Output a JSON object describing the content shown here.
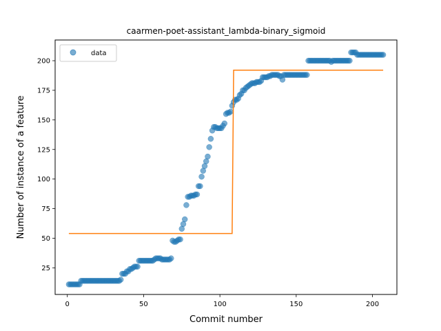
{
  "colors": {
    "data": "#1f77b4",
    "fit": "#ff7f0e"
  },
  "chart_data": {
    "type": "scatter",
    "title": "caarmen-poet-assistant_lambda-binary_sigmoid",
    "xlabel": "Commit number",
    "ylabel": "Number of instance of a feature",
    "xlim": [
      -8,
      216
    ],
    "ylim": [
      2.5,
      217.5
    ],
    "xticks": [
      0,
      50,
      100,
      150,
      200
    ],
    "yticks": [
      25,
      50,
      75,
      100,
      125,
      150,
      175,
      200
    ],
    "legend": {
      "placement": "top-left",
      "entries": [
        {
          "label": "data",
          "marker": "circle"
        }
      ]
    },
    "grid": false,
    "series": [
      {
        "name": "data",
        "kind": "scatter",
        "points": [
          [
            1,
            11
          ],
          [
            2,
            11
          ],
          [
            3,
            11
          ],
          [
            4,
            11
          ],
          [
            5,
            11
          ],
          [
            6,
            11
          ],
          [
            7,
            11
          ],
          [
            8,
            11
          ],
          [
            9,
            14
          ],
          [
            10,
            14
          ],
          [
            11,
            14
          ],
          [
            12,
            14
          ],
          [
            13,
            14
          ],
          [
            14,
            14
          ],
          [
            15,
            14
          ],
          [
            16,
            14
          ],
          [
            17,
            14
          ],
          [
            18,
            14
          ],
          [
            19,
            14
          ],
          [
            20,
            14
          ],
          [
            21,
            14
          ],
          [
            22,
            14
          ],
          [
            23,
            14
          ],
          [
            24,
            14
          ],
          [
            25,
            14
          ],
          [
            26,
            14
          ],
          [
            27,
            14
          ],
          [
            28,
            14
          ],
          [
            29,
            14
          ],
          [
            30,
            14
          ],
          [
            31,
            14
          ],
          [
            32,
            14
          ],
          [
            33,
            14
          ],
          [
            34,
            14
          ],
          [
            35,
            15
          ],
          [
            36,
            20
          ],
          [
            37,
            20
          ],
          [
            38,
            20
          ],
          [
            39,
            22
          ],
          [
            40,
            22
          ],
          [
            41,
            24
          ],
          [
            42,
            24
          ],
          [
            43,
            25
          ],
          [
            44,
            26
          ],
          [
            45,
            26
          ],
          [
            46,
            26
          ],
          [
            47,
            31
          ],
          [
            48,
            31
          ],
          [
            49,
            31
          ],
          [
            50,
            31
          ],
          [
            51,
            31
          ],
          [
            52,
            31
          ],
          [
            53,
            31
          ],
          [
            54,
            31
          ],
          [
            55,
            31
          ],
          [
            56,
            31
          ],
          [
            57,
            32
          ],
          [
            58,
            33
          ],
          [
            59,
            33
          ],
          [
            60,
            33
          ],
          [
            61,
            33
          ],
          [
            62,
            32
          ],
          [
            63,
            32
          ],
          [
            64,
            32
          ],
          [
            65,
            32
          ],
          [
            66,
            32
          ],
          [
            67,
            32
          ],
          [
            68,
            33
          ],
          [
            69,
            48
          ],
          [
            70,
            47
          ],
          [
            71,
            47
          ],
          [
            72,
            48
          ],
          [
            73,
            49
          ],
          [
            74,
            49
          ],
          [
            75,
            58
          ],
          [
            76,
            62
          ],
          [
            77,
            66
          ],
          [
            78,
            78
          ],
          [
            79,
            85
          ],
          [
            80,
            85
          ],
          [
            81,
            86
          ],
          [
            82,
            86
          ],
          [
            83,
            86
          ],
          [
            84,
            87
          ],
          [
            85,
            87
          ],
          [
            86,
            94
          ],
          [
            87,
            94
          ],
          [
            88,
            102
          ],
          [
            89,
            107
          ],
          [
            90,
            111
          ],
          [
            91,
            115
          ],
          [
            92,
            119
          ],
          [
            93,
            127
          ],
          [
            94,
            134
          ],
          [
            95,
            141
          ],
          [
            96,
            144
          ],
          [
            97,
            144
          ],
          [
            98,
            143
          ],
          [
            99,
            143
          ],
          [
            100,
            143
          ],
          [
            101,
            143
          ],
          [
            102,
            145
          ],
          [
            103,
            147
          ],
          [
            104,
            155
          ],
          [
            105,
            156
          ],
          [
            106,
            156
          ],
          [
            107,
            157
          ],
          [
            108,
            162
          ],
          [
            109,
            165
          ],
          [
            110,
            167
          ],
          [
            111,
            167
          ],
          [
            112,
            168
          ],
          [
            113,
            171
          ],
          [
            114,
            172
          ],
          [
            115,
            175
          ],
          [
            116,
            175
          ],
          [
            117,
            177
          ],
          [
            118,
            178
          ],
          [
            119,
            179
          ],
          [
            120,
            180
          ],
          [
            121,
            181
          ],
          [
            122,
            181
          ],
          [
            123,
            181
          ],
          [
            124,
            182
          ],
          [
            125,
            182
          ],
          [
            126,
            182
          ],
          [
            127,
            183
          ],
          [
            128,
            186
          ],
          [
            129,
            186
          ],
          [
            130,
            186
          ],
          [
            131,
            186
          ],
          [
            132,
            187
          ],
          [
            133,
            187
          ],
          [
            134,
            188
          ],
          [
            135,
            188
          ],
          [
            136,
            188
          ],
          [
            137,
            188
          ],
          [
            138,
            188
          ],
          [
            139,
            187
          ],
          [
            140,
            187
          ],
          [
            141,
            184
          ],
          [
            142,
            188
          ],
          [
            143,
            188
          ],
          [
            144,
            188
          ],
          [
            145,
            188
          ],
          [
            146,
            188
          ],
          [
            147,
            188
          ],
          [
            148,
            188
          ],
          [
            149,
            188
          ],
          [
            150,
            188
          ],
          [
            151,
            188
          ],
          [
            152,
            188
          ],
          [
            153,
            188
          ],
          [
            154,
            188
          ],
          [
            155,
            188
          ],
          [
            156,
            188
          ],
          [
            157,
            188
          ],
          [
            158,
            200
          ],
          [
            159,
            200
          ],
          [
            160,
            200
          ],
          [
            161,
            200
          ],
          [
            162,
            200
          ],
          [
            163,
            200
          ],
          [
            164,
            200
          ],
          [
            165,
            200
          ],
          [
            166,
            200
          ],
          [
            167,
            200
          ],
          [
            168,
            200
          ],
          [
            169,
            200
          ],
          [
            170,
            200
          ],
          [
            171,
            200
          ],
          [
            172,
            200
          ],
          [
            173,
            199
          ],
          [
            174,
            200
          ],
          [
            175,
            200
          ],
          [
            176,
            200
          ],
          [
            177,
            200
          ],
          [
            178,
            200
          ],
          [
            179,
            200
          ],
          [
            180,
            200
          ],
          [
            181,
            200
          ],
          [
            182,
            200
          ],
          [
            183,
            200
          ],
          [
            184,
            200
          ],
          [
            185,
            200
          ],
          [
            186,
            207
          ],
          [
            187,
            207
          ],
          [
            188,
            207
          ],
          [
            189,
            207
          ],
          [
            190,
            205
          ],
          [
            191,
            205
          ],
          [
            192,
            205
          ],
          [
            193,
            205
          ],
          [
            194,
            205
          ],
          [
            195,
            205
          ],
          [
            196,
            205
          ],
          [
            197,
            205
          ],
          [
            198,
            205
          ],
          [
            199,
            205
          ],
          [
            200,
            205
          ],
          [
            201,
            205
          ],
          [
            202,
            205
          ],
          [
            203,
            205
          ],
          [
            204,
            205
          ],
          [
            205,
            205
          ],
          [
            206,
            205
          ],
          [
            207,
            205
          ]
        ]
      },
      {
        "kind": "line",
        "points": [
          [
            1,
            54
          ],
          [
            108,
            54
          ],
          [
            109,
            192
          ],
          [
            207,
            192
          ]
        ]
      }
    ]
  }
}
